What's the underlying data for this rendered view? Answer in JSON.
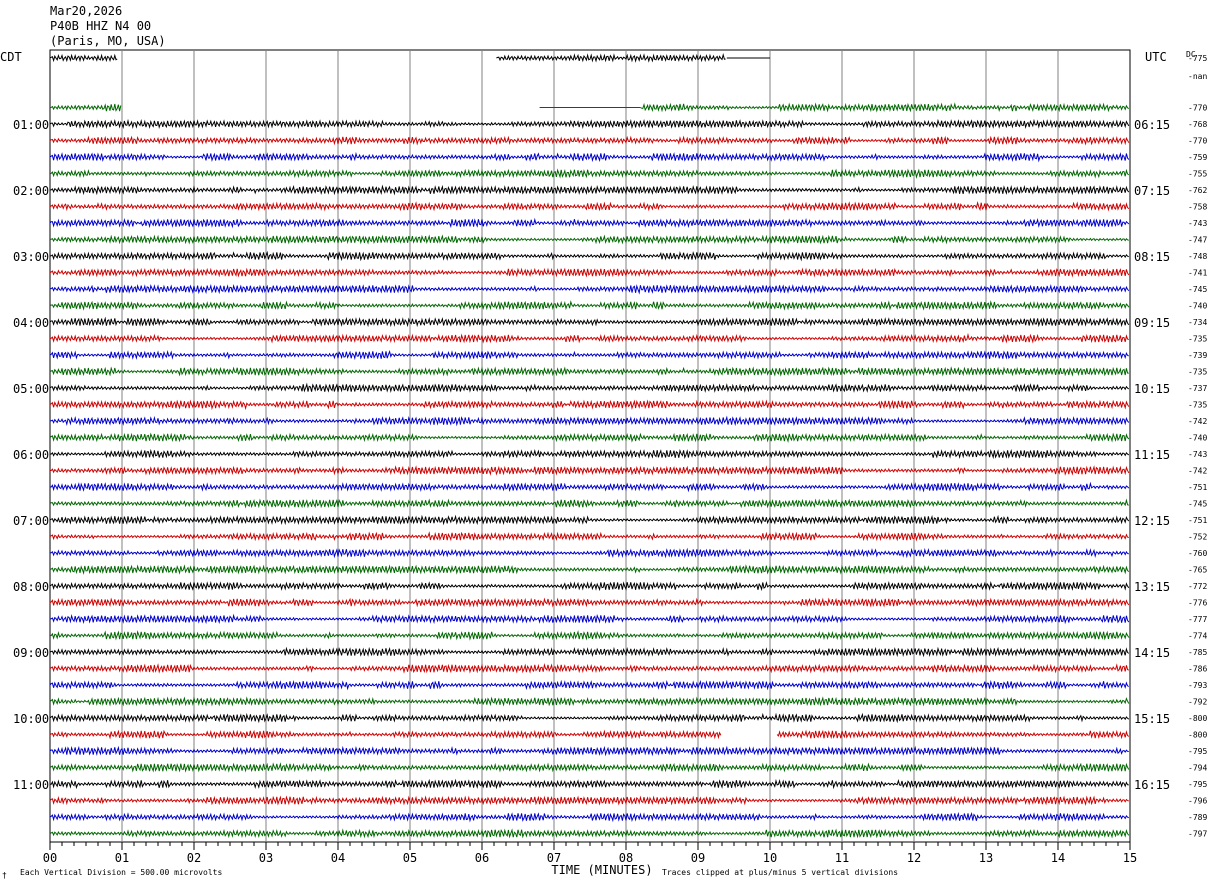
{
  "header": {
    "date": "Mar20,2026",
    "station": "P40B HHZ N4 00",
    "location": "(Paris, MO, USA)"
  },
  "left_tz": "CDT",
  "right_tz": "UTC",
  "dc_label": "DC",
  "footer": {
    "scale_note": "Each Vertical Division =  500.00 microvolts",
    "xlabel": "TIME (MINUTES)",
    "clip_note": "Traces clipped at plus/minus 5 vertical divisions",
    "corner_mark": "†"
  },
  "colors": {
    "black": "#000000",
    "red": "#cc0000",
    "blue": "#0000cc",
    "green": "#006600",
    "grid": "#808080"
  },
  "chart_data": {
    "type": "line",
    "xlabel": "TIME (MINUTES)",
    "xlim": [
      0,
      15
    ],
    "xticks": [
      "00",
      "01",
      "02",
      "03",
      "04",
      "05",
      "06",
      "07",
      "08",
      "09",
      "10",
      "11",
      "12",
      "13",
      "14",
      "15"
    ],
    "left_hour_labels": [
      {
        "label": "01:00",
        "row": 4
      },
      {
        "label": "02:00",
        "row": 8
      },
      {
        "label": "03:00",
        "row": 12
      },
      {
        "label": "04:00",
        "row": 16
      },
      {
        "label": "05:00",
        "row": 20
      },
      {
        "label": "06:00",
        "row": 24
      },
      {
        "label": "07:00",
        "row": 28
      },
      {
        "label": "08:00",
        "row": 32
      },
      {
        "label": "09:00",
        "row": 36
      },
      {
        "label": "10:00",
        "row": 40
      },
      {
        "label": "11:00",
        "row": 44
      }
    ],
    "right_hour_labels": [
      {
        "label": "06:15",
        "row": 4
      },
      {
        "label": "07:15",
        "row": 8
      },
      {
        "label": "08:15",
        "row": 12
      },
      {
        "label": "09:15",
        "row": 16
      },
      {
        "label": "10:15",
        "row": 20
      },
      {
        "label": "11:15",
        "row": 24
      },
      {
        "label": "12:15",
        "row": 28
      },
      {
        "label": "13:15",
        "row": 32
      },
      {
        "label": "14:15",
        "row": 36
      },
      {
        "label": "15:15",
        "row": 40
      },
      {
        "label": "16:15",
        "row": 44
      }
    ],
    "dc_offsets": [
      "-775",
      "-nan",
      "-770",
      "-768",
      "-770",
      "-759",
      "-755",
      "-762",
      "-758",
      "-743",
      "-747",
      "-748",
      "-741",
      "-745",
      "-740",
      "-734",
      "-735",
      "-739",
      "-735",
      "-737",
      "-735",
      "-742",
      "-740",
      "-743",
      "-742",
      "-751",
      "-745",
      "-751",
      "-752",
      "-760",
      "-765",
      "-772",
      "-776",
      "-777",
      "-774",
      "-785",
      "-786",
      "-793",
      "-792",
      "-800",
      "-800",
      "-795",
      "-794",
      "-795",
      "-796",
      "-789",
      "-797"
    ],
    "color_cycle": [
      "black",
      "red",
      "blue",
      "green"
    ],
    "rows_total": 48,
    "row_segments": [
      {
        "row": 0,
        "color": "black",
        "segments": [
          [
            0,
            0.95
          ],
          [
            6.2,
            9.4
          ],
          [
            9.4,
            10,
            "flat"
          ]
        ]
      },
      {
        "row": 1,
        "color": "red",
        "segments": []
      },
      {
        "row": 2,
        "color": "blue",
        "segments": []
      },
      {
        "row": 3,
        "color": "green",
        "segments": [
          [
            0,
            1.0
          ],
          [
            6.8,
            8.2,
            "flat"
          ],
          [
            8.2,
            15
          ]
        ]
      },
      {
        "row": 40,
        "color": "black",
        "segments": [
          [
            0,
            15
          ]
        ]
      },
      {
        "row": 41,
        "color": "red",
        "segments": [
          [
            0,
            9.33
          ],
          [
            10.1,
            15
          ]
        ]
      }
    ],
    "full_rows": {
      "start": 4,
      "end": 47
    }
  }
}
